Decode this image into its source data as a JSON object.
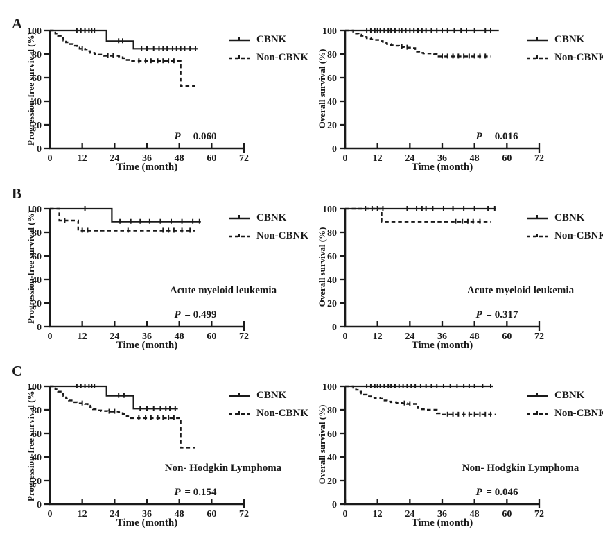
{
  "figure": {
    "background": "#ffffff",
    "line_color": "#1a1a1a",
    "text_color": "#1a1a1a"
  },
  "chart_data": [
    {
      "type": "line",
      "km_style": "step",
      "panel_letter": "A",
      "row": 0,
      "col": 0,
      "ylabel": "Progression-free survival (%)",
      "xlabel": "Time (month)",
      "xlim": [
        0,
        72
      ],
      "ylim": [
        0,
        100
      ],
      "xticks": [
        0,
        12,
        24,
        36,
        48,
        60,
        72
      ],
      "yticks": [
        0,
        20,
        40,
        60,
        80,
        100
      ],
      "grid": false,
      "legend": [
        "CBNK",
        "Non-CBNK"
      ],
      "legend_position": "right-outside",
      "annotation": "",
      "p_label": "P = 0.060",
      "p_italic": "P",
      "p_rest": " = 0.060",
      "series": [
        {
          "name": "CBNK",
          "style": "solid",
          "steps": [
            [
              0,
              100
            ],
            [
              21,
              91
            ],
            [
              31,
              84.5
            ],
            [
              55,
              84.5
            ]
          ],
          "censors": [
            10,
            11.5,
            13,
            14.5,
            15.5,
            16.5,
            25.5,
            27,
            34,
            36,
            38.5,
            40.5,
            42,
            43.5,
            45.5,
            47,
            48.5,
            50,
            52,
            54
          ]
        },
        {
          "name": "Non-CBNK",
          "style": "dashed",
          "steps": [
            [
              0,
              100
            ],
            [
              2,
              97.5
            ],
            [
              3,
              95.5
            ],
            [
              4,
              93.5
            ],
            [
              5,
              91.5
            ],
            [
              6,
              90
            ],
            [
              7,
              88.5
            ],
            [
              8.5,
              87
            ],
            [
              10,
              85.5
            ],
            [
              11,
              84.5
            ],
            [
              13,
              84
            ],
            [
              14,
              82.5
            ],
            [
              15,
              81
            ],
            [
              16.5,
              80
            ],
            [
              18,
              79.5
            ],
            [
              20,
              78.5
            ],
            [
              25.5,
              78
            ],
            [
              27,
              76.5
            ],
            [
              28.5,
              75
            ],
            [
              30,
              74
            ],
            [
              48,
              74
            ],
            [
              48.5,
              53
            ],
            [
              54,
              53
            ]
          ],
          "censors": [
            12,
            21.5,
            23.5,
            33,
            35.5,
            37.5,
            40,
            42,
            44,
            46
          ]
        }
      ]
    },
    {
      "type": "line",
      "km_style": "step",
      "panel_letter": "",
      "row": 0,
      "col": 1,
      "ylabel": "Overall survival (%)",
      "xlabel": "Time (month)",
      "xlim": [
        0,
        72
      ],
      "ylim": [
        0,
        100
      ],
      "xticks": [
        0,
        12,
        24,
        36,
        48,
        60,
        72
      ],
      "yticks": [
        0,
        20,
        40,
        60,
        80,
        100
      ],
      "grid": false,
      "legend": [
        "CBNK",
        "Non-CBNK"
      ],
      "legend_position": "right-outside",
      "annotation": "",
      "p_label": "P = 0.016",
      "p_italic": "P",
      "p_rest": " = 0.016",
      "series": [
        {
          "name": "CBNK",
          "style": "solid",
          "steps": [
            [
              0,
              100
            ],
            [
              57,
              100
            ]
          ],
          "censors": [
            8,
            9.5,
            11,
            12,
            13,
            14.5,
            16,
            17,
            18.5,
            20,
            21,
            22.5,
            24,
            25.5,
            27,
            28.5,
            30,
            32,
            34,
            36,
            38,
            40.5,
            43,
            45,
            48,
            52,
            54
          ]
        },
        {
          "name": "Non-CBNK",
          "style": "dashed",
          "steps": [
            [
              0,
              100
            ],
            [
              3,
              98.5
            ],
            [
              4,
              97.5
            ],
            [
              5,
              96.5
            ],
            [
              6,
              95.5
            ],
            [
              7,
              94.5
            ],
            [
              8,
              93.5
            ],
            [
              9.5,
              92.5
            ],
            [
              11,
              92
            ],
            [
              13,
              91
            ],
            [
              14,
              89.5
            ],
            [
              15.5,
              88.5
            ],
            [
              17,
              87.5
            ],
            [
              18.5,
              87
            ],
            [
              20,
              86
            ],
            [
              22,
              85.5
            ],
            [
              25,
              85
            ],
            [
              26,
              82
            ],
            [
              27.5,
              81
            ],
            [
              29,
              80.5
            ],
            [
              33,
              80
            ],
            [
              34,
              78
            ],
            [
              54,
              78
            ]
          ],
          "censors": [
            21,
            23,
            36,
            38,
            40,
            42,
            44,
            46,
            48,
            50,
            52
          ]
        }
      ]
    },
    {
      "type": "line",
      "km_style": "step",
      "panel_letter": "B",
      "row": 1,
      "col": 0,
      "ylabel": "Progression-free survival (%)",
      "xlabel": "Time (month)",
      "xlim": [
        0,
        72
      ],
      "ylim": [
        0,
        100
      ],
      "xticks": [
        0,
        12,
        24,
        36,
        48,
        60,
        72
      ],
      "yticks": [
        0,
        20,
        40,
        60,
        80,
        100
      ],
      "grid": false,
      "legend": [
        "CBNK",
        "Non-CBNK"
      ],
      "legend_position": "right-outside",
      "annotation": "Acute myeloid leukemia",
      "p_label": "P = 0.499",
      "p_italic": "P",
      "p_rest": " = 0.499",
      "series": [
        {
          "name": "CBNK",
          "style": "solid",
          "steps": [
            [
              0,
              100
            ],
            [
              23,
              89
            ],
            [
              56,
              89
            ]
          ],
          "censors": [
            13,
            26,
            30,
            33.5,
            37,
            41,
            45,
            49,
            53,
            55.5
          ]
        },
        {
          "name": "Non-CBNK",
          "style": "dashed",
          "steps": [
            [
              0,
              100
            ],
            [
              3.5,
              90
            ],
            [
              10.5,
              81.5
            ],
            [
              54,
              81.5
            ]
          ],
          "censors": [
            5.5,
            12,
            14,
            29,
            42,
            44,
            46,
            49,
            52
          ]
        }
      ]
    },
    {
      "type": "line",
      "km_style": "step",
      "panel_letter": "",
      "row": 1,
      "col": 1,
      "ylabel": "Overall survival (%)",
      "xlabel": "Time (month)",
      "xlim": [
        0,
        72
      ],
      "ylim": [
        0,
        100
      ],
      "xticks": [
        0,
        12,
        24,
        36,
        48,
        60,
        72
      ],
      "yticks": [
        0,
        20,
        40,
        60,
        80,
        100
      ],
      "grid": false,
      "legend": [
        "CBNK",
        "Non-CBNK"
      ],
      "legend_position": "right-outside",
      "annotation": "Acute myeloid leukemia",
      "p_label": "P = 0.317",
      "p_italic": "P",
      "p_rest": " = 0.317",
      "series": [
        {
          "name": "CBNK",
          "style": "solid",
          "steps": [
            [
              0,
              100
            ],
            [
              56,
              100
            ]
          ],
          "censors": [
            7.5,
            10,
            12,
            14,
            23,
            26.5,
            28.5,
            30,
            32.5,
            36.5,
            40,
            44,
            48,
            53,
            55.5
          ]
        },
        {
          "name": "Non-CBNK",
          "style": "dashed",
          "steps": [
            [
              0,
              100
            ],
            [
              13.5,
              89
            ],
            [
              54,
              89
            ]
          ],
          "censors": [
            41,
            43.5,
            45.5,
            47.5,
            50
          ]
        }
      ]
    },
    {
      "type": "line",
      "km_style": "step",
      "panel_letter": "C",
      "row": 2,
      "col": 0,
      "ylabel": "Progression-free survival (%)",
      "xlabel": "Time (month)",
      "xlim": [
        0,
        72
      ],
      "ylim": [
        0,
        100
      ],
      "xticks": [
        0,
        12,
        24,
        36,
        48,
        60,
        72
      ],
      "yticks": [
        0,
        20,
        40,
        60,
        80,
        100
      ],
      "grid": false,
      "legend": [
        "CBNK",
        "Non-CBNK"
      ],
      "legend_position": "right-outside",
      "annotation": "Non- Hodgkin Lymphoma",
      "p_label": "P = 0.154",
      "p_italic": "P",
      "p_rest": " = 0.154",
      "series": [
        {
          "name": "CBNK",
          "style": "solid",
          "steps": [
            [
              0,
              100
            ],
            [
              21,
              92
            ],
            [
              31,
              81
            ],
            [
              47.5,
              81
            ]
          ],
          "censors": [
            10,
            11.5,
            13,
            14.5,
            15.5,
            16.5,
            25.5,
            27.5,
            33.5,
            36,
            38.5,
            41,
            43,
            44.5,
            46.5
          ]
        },
        {
          "name": "Non-CBNK",
          "style": "dashed",
          "steps": [
            [
              0,
              100
            ],
            [
              2,
              97.5
            ],
            [
              3,
              95.5
            ],
            [
              4,
              93.5
            ],
            [
              5,
              91.5
            ],
            [
              6,
              89.5
            ],
            [
              7,
              88
            ],
            [
              8.5,
              86.5
            ],
            [
              10,
              85.5
            ],
            [
              13,
              85
            ],
            [
              14,
              83.5
            ],
            [
              15,
              82
            ],
            [
              16,
              80.5
            ],
            [
              17.5,
              79.5
            ],
            [
              19,
              79
            ],
            [
              21.5,
              78.5
            ],
            [
              25.5,
              78
            ],
            [
              27,
              76.5
            ],
            [
              28.5,
              74.5
            ],
            [
              30,
              73
            ],
            [
              48,
              73
            ],
            [
              48.5,
              48
            ],
            [
              54,
              48
            ]
          ],
          "censors": [
            12,
            22,
            24,
            33,
            35.5,
            37.5,
            40,
            42,
            44,
            46
          ]
        }
      ]
    },
    {
      "type": "line",
      "km_style": "step",
      "panel_letter": "",
      "row": 2,
      "col": 1,
      "ylabel": "Overall survival (%)",
      "xlabel": "Time (month)",
      "xlim": [
        0,
        72
      ],
      "ylim": [
        0,
        100
      ],
      "xticks": [
        0,
        12,
        24,
        36,
        48,
        60,
        72
      ],
      "yticks": [
        0,
        20,
        40,
        60,
        80,
        100
      ],
      "grid": false,
      "legend": [
        "CBNK",
        "Non-CBNK"
      ],
      "legend_position": "right-outside",
      "annotation": "Non- Hodgkin Lymphoma",
      "p_label": "P = 0.046",
      "p_italic": "P",
      "p_rest": " = 0.046",
      "series": [
        {
          "name": "CBNK",
          "style": "solid",
          "steps": [
            [
              0,
              100
            ],
            [
              55,
              100
            ]
          ],
          "censors": [
            8,
            9.5,
            11,
            12,
            13,
            14.5,
            16,
            17,
            18.5,
            20,
            21.5,
            23,
            24.5,
            26,
            28,
            30,
            32,
            34,
            36.5,
            39,
            41.5,
            44,
            46,
            48,
            51,
            54
          ]
        },
        {
          "name": "Non-CBNK",
          "style": "dashed",
          "steps": [
            [
              0,
              100
            ],
            [
              3,
              98
            ],
            [
              4,
              97
            ],
            [
              5,
              95.5
            ],
            [
              6,
              94
            ],
            [
              7,
              93
            ],
            [
              8,
              91.5
            ],
            [
              9.5,
              90.5
            ],
            [
              11,
              90
            ],
            [
              13,
              89.5
            ],
            [
              14,
              88
            ],
            [
              15.5,
              87
            ],
            [
              17,
              86.5
            ],
            [
              19,
              86
            ],
            [
              21,
              85.5
            ],
            [
              23,
              85
            ],
            [
              26,
              85
            ],
            [
              27,
              81.5
            ],
            [
              28.5,
              80.5
            ],
            [
              30,
              80
            ],
            [
              33,
              80
            ],
            [
              34,
              77
            ],
            [
              35.5,
              76
            ],
            [
              56,
              76
            ]
          ],
          "censors": [
            22,
            24,
            38,
            40,
            42,
            44,
            46,
            48,
            50,
            52,
            54
          ]
        }
      ]
    }
  ]
}
